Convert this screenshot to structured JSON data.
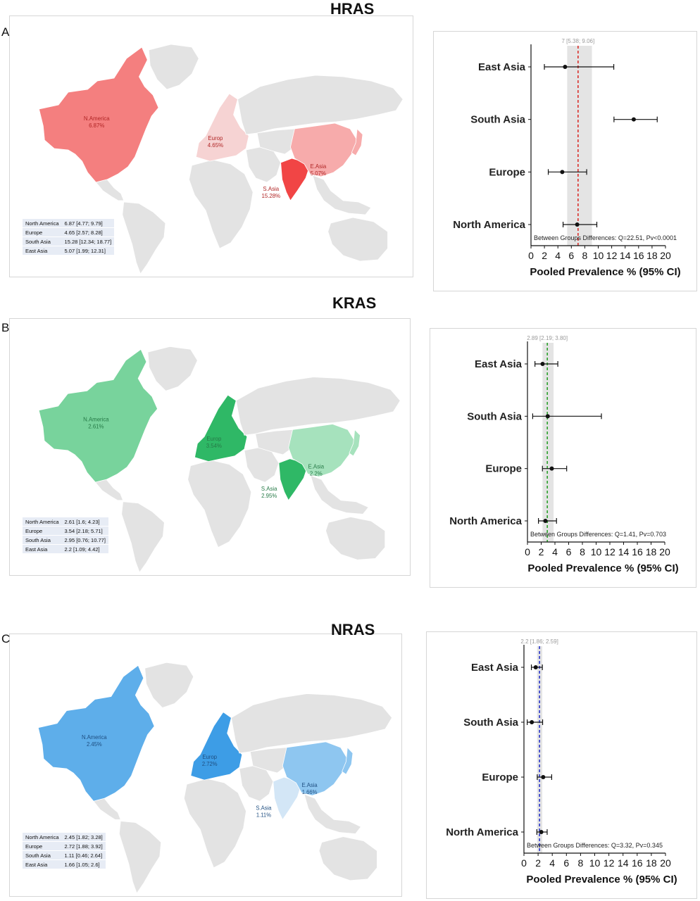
{
  "panels": [
    {
      "letter": "A",
      "gene": "HRAS",
      "map": {
        "colors": {
          "strong": "#f14545",
          "mid": "#f47f7f",
          "light": "#f7abab",
          "faint": "#f6d3d3",
          "text": "#b02525"
        },
        "shading": {
          "namerica": "mid",
          "europe": "faint",
          "southasia": "strong",
          "eastasia": "light"
        },
        "labels": {
          "namerica": [
            "N.America",
            "6.87%"
          ],
          "europe": [
            "Europ",
            "4.65%"
          ],
          "eastasia": [
            "E.Asia",
            "5.07%"
          ],
          "southasia": [
            "S.Asia",
            "15.28%"
          ]
        },
        "table": [
          [
            "North America",
            "6.87 [4.77; 9.79]"
          ],
          [
            "Europe",
            "4.65 [2.57; 8.28]"
          ],
          [
            "South Asia",
            "15.28 [12.34; 18.77]"
          ],
          [
            "East Asia",
            "5.07 [1.99; 12.31]"
          ]
        ]
      },
      "chart_data": {
        "type": "forest",
        "categories": [
          "East Asia",
          "South Asia",
          "Europe",
          "North America"
        ],
        "estimates": [
          5.07,
          15.28,
          4.65,
          6.87
        ],
        "ci_low": [
          1.99,
          12.34,
          2.57,
          4.77
        ],
        "ci_high": [
          12.31,
          18.77,
          8.28,
          9.79
        ],
        "pooled": {
          "value": 7,
          "ci": [
            5.38,
            9.06
          ],
          "label": "7 [5.38; 9.06]"
        },
        "line_color": "#d9302c",
        "xlim": [
          0,
          20
        ],
        "xticks": [
          "0",
          "2",
          "4",
          "6",
          "8",
          "10",
          "12",
          "14",
          "16",
          "18",
          "20"
        ],
        "xlabel": "Pooled Prevalence % (95% CI)",
        "annotation": "Between Groups Differences: Q=22.51, Pv<0.0001"
      }
    },
    {
      "letter": "B",
      "gene": "KRAS",
      "map": {
        "colors": {
          "strong": "#2fb866",
          "mid": "#78d39c",
          "light": "#a6e2bd",
          "faint": "#d5f0df",
          "text": "#267a47"
        },
        "shading": {
          "namerica": "mid",
          "europe": "strong",
          "southasia": "strong",
          "eastasia": "light"
        },
        "labels": {
          "namerica": [
            "N.America",
            "2.61%"
          ],
          "europe": [
            "Europ",
            "3.54%"
          ],
          "eastasia": [
            "E.Asia",
            "2.2%"
          ],
          "southasia": [
            "S.Asia",
            "2.95%"
          ]
        },
        "table": [
          [
            "North America",
            "2.61 [1.6; 4.23]"
          ],
          [
            "Europe",
            "3.54 [2.18; 5.71]"
          ],
          [
            "South Asia",
            "2.95 [0.76; 10.77]"
          ],
          [
            "East Asia",
            "2.2 [1.09; 4.42]"
          ]
        ]
      },
      "chart_data": {
        "type": "forest",
        "categories": [
          "East Asia",
          "South Asia",
          "Europe",
          "North America"
        ],
        "estimates": [
          2.2,
          2.95,
          3.54,
          2.61
        ],
        "ci_low": [
          1.09,
          0.76,
          2.18,
          1.6
        ],
        "ci_high": [
          4.42,
          10.77,
          5.71,
          4.23
        ],
        "pooled": {
          "value": 2.89,
          "ci": [
            2.19,
            3.8
          ],
          "label": "2.89 [2.19; 3.80]"
        },
        "line_color": "#2ca02c",
        "xlim": [
          0,
          20
        ],
        "xticks": [
          "0",
          "2",
          "4",
          "6",
          "8",
          "10",
          "12",
          "14",
          "16",
          "18",
          "20"
        ],
        "xlabel": "Pooled Prevalence % (95% CI)",
        "annotation": "Between Groups Differences: Q=1.41, Pv=0.703"
      }
    },
    {
      "letter": "C",
      "gene": "NRAS",
      "map": {
        "colors": {
          "strong": "#3d9de6",
          "mid": "#5eaeea",
          "light": "#8ec6f0",
          "faint": "#d3e6f6",
          "text": "#1f4e80"
        },
        "shading": {
          "namerica": "mid",
          "europe": "strong",
          "southasia": "faint",
          "eastasia": "light"
        },
        "labels": {
          "namerica": [
            "N.America",
            "2.45%"
          ],
          "europe": [
            "Europ",
            "2.72%"
          ],
          "eastasia": [
            "E.Asia",
            "1.66%"
          ],
          "southasia": [
            "S.Asia",
            "1.11%"
          ]
        },
        "table": [
          [
            "North America",
            "2.45 [1.82; 3.28]"
          ],
          [
            "Europe",
            "2.72 [1.88; 3.92]"
          ],
          [
            "South Asia",
            "1.11 [0.46; 2.64]"
          ],
          [
            "East Asia",
            "1.66 [1.05; 2.6]"
          ]
        ]
      },
      "chart_data": {
        "type": "forest",
        "categories": [
          "East Asia",
          "South Asia",
          "Europe",
          "North America"
        ],
        "estimates": [
          1.66,
          1.11,
          2.72,
          2.45
        ],
        "ci_low": [
          1.05,
          0.46,
          1.88,
          1.82
        ],
        "ci_high": [
          2.6,
          2.64,
          3.92,
          3.28
        ],
        "pooled": {
          "value": 2.2,
          "ci": [
            1.86,
            2.59
          ],
          "label": "2.2 [1.86; 2.59]"
        },
        "line_color": "#2a36c9",
        "xlim": [
          0,
          20
        ],
        "xticks": [
          "0",
          "2",
          "4",
          "6",
          "8",
          "10",
          "12",
          "14",
          "16",
          "18",
          "20"
        ],
        "xlabel": "Pooled Prevalence % (95% CI)",
        "annotation": "Between Groups Differences: Q=3.32, Pv=0.345"
      }
    }
  ]
}
